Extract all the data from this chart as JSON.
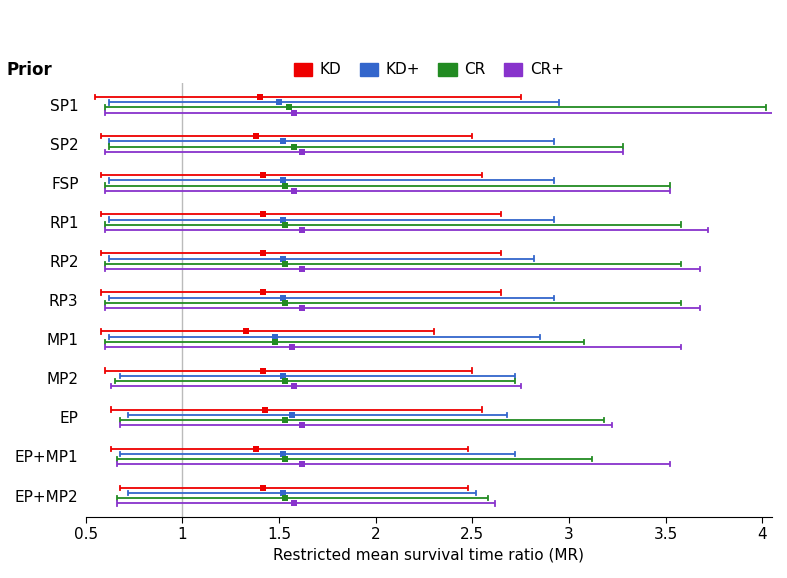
{
  "priors": [
    "SP1",
    "SP2",
    "FSP",
    "RP1",
    "RP2",
    "RP3",
    "MP1",
    "MP2",
    "EP",
    "EP+MP1",
    "EP+MP2"
  ],
  "series": {
    "KD": {
      "color": "#EE0000",
      "means": [
        1.4,
        1.38,
        1.42,
        1.42,
        1.42,
        1.42,
        1.33,
        1.42,
        1.43,
        1.38,
        1.42
      ],
      "lo": [
        0.55,
        0.58,
        0.58,
        0.58,
        0.58,
        0.58,
        0.58,
        0.6,
        0.63,
        0.63,
        0.68
      ],
      "hi": [
        2.75,
        2.5,
        2.55,
        2.65,
        2.65,
        2.65,
        2.3,
        2.5,
        2.55,
        2.48,
        2.48
      ]
    },
    "KD+": {
      "color": "#3366CC",
      "means": [
        1.5,
        1.52,
        1.52,
        1.52,
        1.52,
        1.52,
        1.48,
        1.52,
        1.57,
        1.52,
        1.52
      ],
      "lo": [
        0.62,
        0.62,
        0.62,
        0.62,
        0.62,
        0.62,
        0.62,
        0.68,
        0.72,
        0.68,
        0.72
      ],
      "hi": [
        2.95,
        2.92,
        2.92,
        2.92,
        2.82,
        2.92,
        2.85,
        2.72,
        2.68,
        2.72,
        2.52
      ]
    },
    "CR": {
      "color": "#228B22",
      "means": [
        1.55,
        1.58,
        1.53,
        1.53,
        1.53,
        1.53,
        1.48,
        1.53,
        1.53,
        1.53,
        1.53
      ],
      "lo": [
        0.6,
        0.62,
        0.6,
        0.6,
        0.6,
        0.6,
        0.6,
        0.65,
        0.68,
        0.66,
        0.66
      ],
      "hi": [
        4.02,
        3.28,
        3.52,
        3.58,
        3.58,
        3.58,
        3.08,
        2.72,
        3.18,
        3.12,
        2.58
      ]
    },
    "CR+": {
      "color": "#8833CC",
      "means": [
        1.58,
        1.62,
        1.58,
        1.62,
        1.62,
        1.62,
        1.57,
        1.58,
        1.62,
        1.62,
        1.58
      ],
      "lo": [
        0.6,
        0.6,
        0.6,
        0.6,
        0.6,
        0.6,
        0.6,
        0.63,
        0.68,
        0.66,
        0.66
      ],
      "hi": [
        4.1,
        3.28,
        3.52,
        3.72,
        3.68,
        3.68,
        3.58,
        2.75,
        3.22,
        3.52,
        2.62
      ]
    }
  },
  "xlim": [
    0.5,
    4.05
  ],
  "xticks": [
    0.5,
    1.0,
    1.5,
    2.0,
    2.5,
    3.0,
    3.5,
    4.0
  ],
  "xtick_labels": [
    "0.5",
    "1",
    "1.5",
    "2",
    "2.5",
    "3",
    "3.5",
    "4"
  ],
  "xlabel": "Restricted mean survival time ratio (MR)",
  "vline": 1.0,
  "title_label": "Prior",
  "background_color": "#ffffff",
  "legend_labels": [
    "KD",
    "KD+",
    "CR",
    "CR+"
  ],
  "offsets": [
    0.2,
    0.065,
    -0.065,
    -0.2
  ]
}
